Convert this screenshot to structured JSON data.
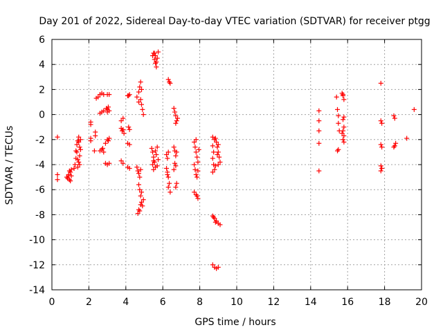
{
  "chart_data": {
    "type": "scatter",
    "title": "Day 201 of 2022, Sidereal Day-to-day VTEC variation (SDTVAR) for receiver ptgg",
    "xlabel": "GPS time / hours",
    "ylabel": "SDTVAR / TECUs",
    "xlim": [
      0,
      20
    ],
    "ylim": [
      -14,
      6
    ],
    "xticks": [
      "0",
      "2",
      "4",
      "6",
      "8",
      "10",
      "12",
      "14",
      "16",
      "18",
      "20"
    ],
    "yticks": [
      "6",
      "4",
      "2",
      "0",
      "-2",
      "-4",
      "-6",
      "-8",
      "-10",
      "-12",
      "-14"
    ],
    "grid": true,
    "marker": "+",
    "color": "#ff0000",
    "series": [
      {
        "name": "SDTVAR",
        "points": [
          [
            0.3,
            -1.8
          ],
          [
            0.3,
            -4.8
          ],
          [
            0.3,
            -5.2
          ],
          [
            0.8,
            -5.0
          ],
          [
            0.85,
            -5.1
          ],
          [
            0.9,
            -4.8
          ],
          [
            0.95,
            -5.2
          ],
          [
            1.0,
            -4.6
          ],
          [
            1.05,
            -4.4
          ],
          [
            1.0,
            -5.3
          ],
          [
            0.9,
            -4.9
          ],
          [
            1.05,
            -4.9
          ],
          [
            0.95,
            -4.5
          ],
          [
            1.2,
            -4.3
          ],
          [
            1.25,
            -4.0
          ],
          [
            1.3,
            -3.5
          ],
          [
            1.3,
            -2.9
          ],
          [
            1.35,
            -2.4
          ],
          [
            1.4,
            -2.1
          ],
          [
            1.45,
            -1.8
          ],
          [
            1.5,
            -2.6
          ],
          [
            1.5,
            -3.3
          ],
          [
            1.45,
            -3.8
          ],
          [
            1.4,
            -4.2
          ],
          [
            1.55,
            -2.0
          ],
          [
            1.55,
            -2.8
          ],
          [
            1.5,
            -4.0
          ],
          [
            1.35,
            -3.0
          ],
          [
            1.45,
            -2.2
          ],
          [
            1.4,
            -3.6
          ],
          [
            2.1,
            -0.6
          ],
          [
            2.1,
            -0.8
          ],
          [
            2.1,
            -1.9
          ],
          [
            2.1,
            -2.1
          ],
          [
            2.35,
            -1.4
          ],
          [
            2.3,
            -2.9
          ],
          [
            2.35,
            -1.7
          ],
          [
            2.4,
            1.3
          ],
          [
            2.5,
            1.4
          ],
          [
            2.6,
            1.6
          ],
          [
            2.7,
            1.7
          ],
          [
            2.8,
            1.6
          ],
          [
            3.0,
            1.6
          ],
          [
            3.1,
            1.6
          ],
          [
            2.6,
            0.1
          ],
          [
            2.7,
            0.2
          ],
          [
            2.8,
            0.3
          ],
          [
            2.95,
            0.5
          ],
          [
            3.0,
            0.2
          ],
          [
            3.05,
            0.6
          ],
          [
            3.1,
            0.3
          ],
          [
            3.0,
            0.4
          ],
          [
            2.6,
            -2.9
          ],
          [
            2.7,
            -2.8
          ],
          [
            2.8,
            -3.0
          ],
          [
            2.75,
            -2.7
          ],
          [
            2.9,
            -2.3
          ],
          [
            3.0,
            -2.0
          ],
          [
            3.05,
            -2.1
          ],
          [
            3.1,
            -1.9
          ],
          [
            2.9,
            -3.9
          ],
          [
            3.0,
            -4.0
          ],
          [
            3.1,
            -3.9
          ],
          [
            3.75,
            -1.1
          ],
          [
            3.8,
            -1.3
          ],
          [
            3.9,
            -1.5
          ],
          [
            3.85,
            -1.2
          ],
          [
            3.75,
            -0.5
          ],
          [
            3.85,
            -0.3
          ],
          [
            3.75,
            -3.7
          ],
          [
            3.85,
            -3.9
          ],
          [
            4.1,
            -4.2
          ],
          [
            4.2,
            -4.3
          ],
          [
            4.1,
            1.5
          ],
          [
            4.2,
            1.6
          ],
          [
            4.15,
            1.5
          ],
          [
            4.15,
            -1.0
          ],
          [
            4.2,
            -1.2
          ],
          [
            4.1,
            -2.3
          ],
          [
            4.2,
            -2.4
          ],
          [
            4.6,
            1.4
          ],
          [
            4.7,
            1.8
          ],
          [
            4.75,
            2.2
          ],
          [
            4.8,
            2.6
          ],
          [
            4.85,
            2.0
          ],
          [
            4.8,
            1.2
          ],
          [
            4.85,
            0.8
          ],
          [
            4.9,
            0.4
          ],
          [
            4.95,
            0.0
          ],
          [
            4.7,
            1.0
          ],
          [
            4.6,
            -4.2
          ],
          [
            4.65,
            -4.5
          ],
          [
            4.7,
            -4.7
          ],
          [
            4.75,
            -5.0
          ],
          [
            4.8,
            -4.4
          ],
          [
            4.7,
            -5.6
          ],
          [
            4.75,
            -6.0
          ],
          [
            4.8,
            -6.5
          ],
          [
            4.85,
            -7.0
          ],
          [
            4.9,
            -7.3
          ],
          [
            4.95,
            -6.8
          ],
          [
            4.85,
            -6.2
          ],
          [
            4.8,
            -7.2
          ],
          [
            4.7,
            -7.6
          ],
          [
            4.65,
            -7.9
          ],
          [
            4.75,
            -7.7
          ],
          [
            5.45,
            4.7
          ],
          [
            5.5,
            4.9
          ],
          [
            5.55,
            4.4
          ],
          [
            5.6,
            4.1
          ],
          [
            5.65,
            3.8
          ],
          [
            5.7,
            4.5
          ],
          [
            5.75,
            5.0
          ],
          [
            5.65,
            4.2
          ],
          [
            5.6,
            4.7
          ],
          [
            5.55,
            4.9
          ],
          [
            5.4,
            -2.7
          ],
          [
            5.45,
            -3.0
          ],
          [
            5.5,
            -3.4
          ],
          [
            5.55,
            -3.8
          ],
          [
            5.6,
            -4.2
          ],
          [
            5.65,
            -3.2
          ],
          [
            5.7,
            -2.6
          ],
          [
            5.75,
            -3.6
          ],
          [
            5.5,
            -4.4
          ],
          [
            5.45,
            -4.0
          ],
          [
            5.6,
            -2.9
          ],
          [
            5.7,
            -4.1
          ],
          [
            5.5,
            -3.7
          ],
          [
            6.3,
            2.8
          ],
          [
            6.35,
            2.6
          ],
          [
            6.4,
            2.5
          ],
          [
            6.2,
            -3.2
          ],
          [
            6.25,
            -3.5
          ],
          [
            6.3,
            -3.0
          ],
          [
            6.2,
            -4.3
          ],
          [
            6.25,
            -4.6
          ],
          [
            6.3,
            -5.0
          ],
          [
            6.35,
            -5.5
          ],
          [
            6.4,
            -6.2
          ],
          [
            6.3,
            -5.8
          ],
          [
            6.25,
            -4.8
          ],
          [
            6.6,
            0.5
          ],
          [
            6.65,
            0.2
          ],
          [
            6.7,
            -0.1
          ],
          [
            6.75,
            -0.5
          ],
          [
            6.8,
            -0.3
          ],
          [
            6.7,
            -0.7
          ],
          [
            6.6,
            -2.6
          ],
          [
            6.65,
            -2.9
          ],
          [
            6.7,
            -3.3
          ],
          [
            6.75,
            -3.0
          ],
          [
            6.65,
            -3.9
          ],
          [
            6.7,
            -4.1
          ],
          [
            6.6,
            -4.4
          ],
          [
            6.75,
            -5.5
          ],
          [
            6.7,
            -5.8
          ],
          [
            7.7,
            -2.2
          ],
          [
            7.75,
            -2.6
          ],
          [
            7.8,
            -3.0
          ],
          [
            7.85,
            -3.4
          ],
          [
            7.9,
            -3.8
          ],
          [
            7.95,
            -2.8
          ],
          [
            7.8,
            -2.0
          ],
          [
            7.7,
            -4.0
          ],
          [
            7.75,
            -4.4
          ],
          [
            7.8,
            -4.8
          ],
          [
            7.85,
            -5.0
          ],
          [
            7.9,
            -4.5
          ],
          [
            7.7,
            -6.2
          ],
          [
            7.8,
            -6.4
          ],
          [
            7.9,
            -6.7
          ],
          [
            7.85,
            -6.5
          ],
          [
            8.7,
            -1.8
          ],
          [
            8.8,
            -2.0
          ],
          [
            8.9,
            -2.2
          ],
          [
            8.95,
            -2.6
          ],
          [
            9.0,
            -3.0
          ],
          [
            9.05,
            -3.4
          ],
          [
            9.1,
            -3.8
          ],
          [
            8.85,
            -1.9
          ],
          [
            9.0,
            -2.4
          ],
          [
            8.95,
            -3.2
          ],
          [
            8.7,
            -2.5
          ],
          [
            8.75,
            -3.0
          ],
          [
            8.7,
            -3.5
          ],
          [
            8.75,
            -4.0
          ],
          [
            8.8,
            -4.4
          ],
          [
            8.7,
            -4.6
          ],
          [
            8.85,
            -4.1
          ],
          [
            9.0,
            -4.0
          ],
          [
            8.7,
            -8.1
          ],
          [
            8.8,
            -8.3
          ],
          [
            8.9,
            -8.5
          ],
          [
            9.0,
            -8.7
          ],
          [
            9.1,
            -8.8
          ],
          [
            8.85,
            -8.6
          ],
          [
            8.75,
            -8.2
          ],
          [
            8.7,
            -12.0
          ],
          [
            8.8,
            -12.2
          ],
          [
            8.9,
            -12.3
          ],
          [
            9.0,
            -12.2
          ],
          [
            14.45,
            0.3
          ],
          [
            14.45,
            -0.5
          ],
          [
            14.45,
            -1.3
          ],
          [
            14.45,
            -2.3
          ],
          [
            14.45,
            -4.5
          ],
          [
            15.4,
            1.4
          ],
          [
            15.45,
            0.4
          ],
          [
            15.5,
            -0.1
          ],
          [
            15.5,
            -0.7
          ],
          [
            15.55,
            -1.3
          ],
          [
            15.5,
            -2.8
          ],
          [
            15.45,
            -2.9
          ],
          [
            15.7,
            1.7
          ],
          [
            15.75,
            1.5
          ],
          [
            15.8,
            1.2
          ],
          [
            15.75,
            1.6
          ],
          [
            15.8,
            -0.2
          ],
          [
            15.75,
            -0.4
          ],
          [
            15.8,
            -1.0
          ],
          [
            15.75,
            -1.3
          ],
          [
            15.8,
            -1.7
          ],
          [
            15.75,
            -2.0
          ],
          [
            15.8,
            -2.2
          ],
          [
            15.7,
            -1.5
          ],
          [
            17.8,
            2.5
          ],
          [
            17.8,
            -0.5
          ],
          [
            17.85,
            -0.7
          ],
          [
            17.8,
            -2.4
          ],
          [
            17.85,
            -2.6
          ],
          [
            17.8,
            -4.1
          ],
          [
            17.85,
            -4.3
          ],
          [
            17.8,
            -4.5
          ],
          [
            18.5,
            -0.1
          ],
          [
            18.55,
            -0.3
          ],
          [
            18.6,
            -2.3
          ],
          [
            18.55,
            -2.5
          ],
          [
            18.5,
            -2.6
          ],
          [
            19.2,
            -1.9
          ],
          [
            19.6,
            0.4
          ]
        ]
      }
    ]
  }
}
